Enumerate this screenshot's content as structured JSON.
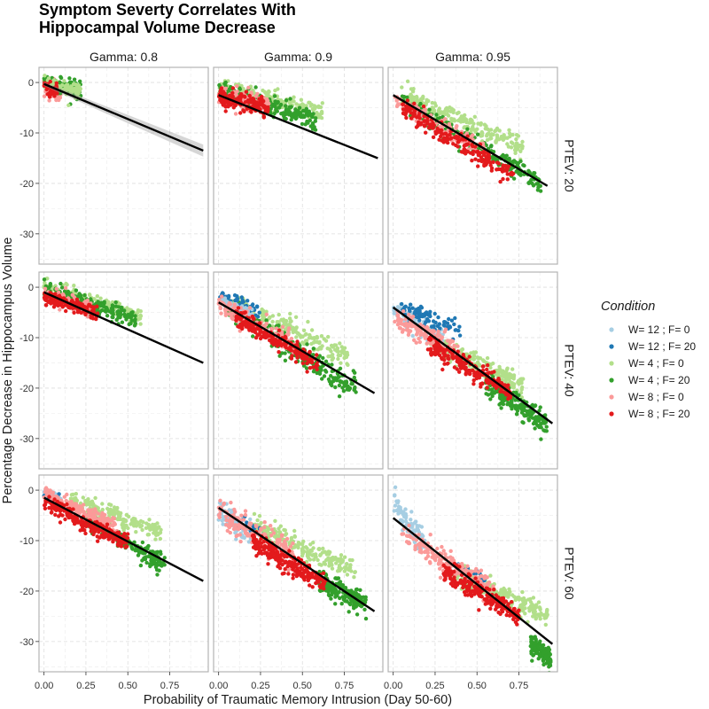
{
  "chart_data": {
    "type": "scatter",
    "title": "Symptom Severty Correlates With\nHippocampal Volume Decrease",
    "xlabel": "Probability of Traumatic Memory Intrusion (Day 50-60)",
    "ylabel": "Percentage Decrease in Hippocampus Volume",
    "xlim": [
      -0.03,
      0.98
    ],
    "ylim": [
      -36,
      3
    ],
    "x_ticks": [
      0,
      0.25,
      0.5,
      0.75
    ],
    "x_tick_labels": [
      "0.00",
      "0.25",
      "0.50",
      "0.75"
    ],
    "y_ticks": [
      0,
      -10,
      -20,
      -30
    ],
    "y_tick_labels": [
      "0",
      "-10",
      "-20",
      "-30"
    ],
    "grid": true,
    "facet_columns": [
      "Gamma: 0.8",
      "Gamma: 0.9",
      "Gamma: 0.95"
    ],
    "facet_rows": [
      "PTEV: 20",
      "PTEV: 40",
      "PTEV: 60"
    ],
    "legend": {
      "title": "Condition",
      "position": "right",
      "entries": [
        {
          "label": "W= 12 ; F= 0",
          "color": "#a6cee3"
        },
        {
          "label": "W= 12 ; F= 20",
          "color": "#1f78b4"
        },
        {
          "label": "W= 4 ; F= 0",
          "color": "#b2df8a"
        },
        {
          "label": "W= 4 ; F= 20",
          "color": "#33a02c"
        },
        {
          "label": "W= 8 ; F= 0",
          "color": "#fb9a99"
        },
        {
          "label": "W= 8 ; F= 20",
          "color": "#e31a1c"
        }
      ]
    },
    "panels": [
      {
        "row": 0,
        "col": 0,
        "fit": {
          "x0": 0.0,
          "y0": -0.3,
          "x1": 0.95,
          "y1": -13.5
        },
        "band": true,
        "clusters": [
          {
            "c": 4,
            "x": [
              0.0,
              0.1
            ],
            "y0": -0.5,
            "slope": -20,
            "sd": 0.8,
            "n": 90
          },
          {
            "c": 3,
            "x": [
              0.0,
              0.22
            ],
            "y0": 0.5,
            "slope": -10,
            "sd": 0.8,
            "n": 90
          },
          {
            "c": 2,
            "x": [
              0.0,
              0.22
            ],
            "y0": 0.3,
            "slope": -10,
            "sd": 0.8,
            "n": 80
          },
          {
            "c": 5,
            "x": [
              0.0,
              0.08
            ],
            "y0": -0.7,
            "slope": -15,
            "sd": 0.7,
            "n": 40
          }
        ]
      },
      {
        "row": 0,
        "col": 1,
        "fit": {
          "x0": 0.0,
          "y0": -2.5,
          "x1": 0.95,
          "y1": -15
        },
        "band": false,
        "clusters": [
          {
            "c": 2,
            "x": [
              0.0,
              0.62
            ],
            "y0": -1.0,
            "slope": -8,
            "sd": 0.9,
            "n": 200
          },
          {
            "c": 3,
            "x": [
              0.0,
              0.58
            ],
            "y0": -1.5,
            "slope": -10,
            "sd": 1.0,
            "n": 200
          },
          {
            "c": 4,
            "x": [
              0.0,
              0.3
            ],
            "y0": -2.5,
            "slope": -6,
            "sd": 0.8,
            "n": 150
          },
          {
            "c": 5,
            "x": [
              0.0,
              0.3
            ],
            "y0": -3.0,
            "slope": -7,
            "sd": 0.8,
            "n": 150
          }
        ]
      },
      {
        "row": 0,
        "col": 2,
        "fit": {
          "x0": 0.0,
          "y0": -2.5,
          "x1": 0.92,
          "y1": -20.5
        },
        "band": false,
        "clusters": [
          {
            "c": 2,
            "x": [
              0.05,
              0.8
            ],
            "y0": -2.0,
            "slope": -14,
            "sd": 1.0,
            "n": 220
          },
          {
            "c": 3,
            "x": [
              0.05,
              0.88
            ],
            "y0": -3.0,
            "slope": -19,
            "sd": 1.0,
            "n": 220
          },
          {
            "c": 4,
            "x": [
              0.0,
              0.55
            ],
            "y0": -3.5,
            "slope": -18,
            "sd": 0.8,
            "n": 150
          },
          {
            "c": 5,
            "x": [
              0.05,
              0.72
            ],
            "y0": -4.0,
            "slope": -20,
            "sd": 0.9,
            "n": 200
          }
        ]
      },
      {
        "row": 1,
        "col": 0,
        "fit": {
          "x0": 0.0,
          "y0": -1.0,
          "x1": 0.95,
          "y1": -15
        },
        "band": false,
        "clusters": [
          {
            "c": 2,
            "x": [
              0.0,
              0.58
            ],
            "y0": 0.0,
            "slope": -10,
            "sd": 0.8,
            "n": 180
          },
          {
            "c": 3,
            "x": [
              0.0,
              0.55
            ],
            "y0": 0.0,
            "slope": -12,
            "sd": 0.9,
            "n": 180
          },
          {
            "c": 4,
            "x": [
              0.0,
              0.3
            ],
            "y0": -1.5,
            "slope": -10,
            "sd": 0.7,
            "n": 140
          },
          {
            "c": 5,
            "x": [
              0.0,
              0.32
            ],
            "y0": -2.0,
            "slope": -10,
            "sd": 0.7,
            "n": 140
          }
        ]
      },
      {
        "row": 1,
        "col": 1,
        "fit": {
          "x0": 0.0,
          "y0": -3.0,
          "x1": 0.93,
          "y1": -21
        },
        "band": false,
        "clusters": [
          {
            "c": 2,
            "x": [
              0.05,
              0.78
            ],
            "y0": -2.0,
            "slope": -15,
            "sd": 1.1,
            "n": 200
          },
          {
            "c": 3,
            "x": [
              0.05,
              0.82
            ],
            "y0": -3.0,
            "slope": -21,
            "sd": 1.2,
            "n": 230
          },
          {
            "c": 1,
            "x": [
              0.0,
              0.25
            ],
            "y0": -1.5,
            "slope": -13,
            "sd": 0.6,
            "n": 50
          },
          {
            "c": 0,
            "x": [
              0.0,
              0.2
            ],
            "y0": -2.5,
            "slope": -13,
            "sd": 0.6,
            "n": 50
          },
          {
            "c": 4,
            "x": [
              0.0,
              0.45
            ],
            "y0": -3.5,
            "slope": -18,
            "sd": 0.9,
            "n": 180
          },
          {
            "c": 5,
            "x": [
              0.1,
              0.6
            ],
            "y0": -4.0,
            "slope": -19,
            "sd": 0.9,
            "n": 200
          }
        ]
      },
      {
        "row": 1,
        "col": 2,
        "fit": {
          "x0": 0.0,
          "y0": -4.0,
          "x1": 0.95,
          "y1": -27
        },
        "band": false,
        "clusters": [
          {
            "c": 2,
            "x": [
              0.2,
              0.78
            ],
            "y0": -7.0,
            "slope": -16,
            "sd": 1.0,
            "n": 200
          },
          {
            "c": 3,
            "x": [
              0.55,
              0.92
            ],
            "y0": -7.0,
            "slope": -22,
            "sd": 1.2,
            "n": 200
          },
          {
            "c": 0,
            "x": [
              0.0,
              0.3
            ],
            "y0": -5.0,
            "slope": -17,
            "sd": 1.0,
            "n": 80
          },
          {
            "c": 1,
            "x": [
              0.05,
              0.4
            ],
            "y0": -3.5,
            "slope": -13,
            "sd": 0.9,
            "n": 80
          },
          {
            "c": 4,
            "x": [
              0.0,
              0.4
            ],
            "y0": -6.0,
            "slope": -18,
            "sd": 1.1,
            "n": 150
          },
          {
            "c": 5,
            "x": [
              0.2,
              0.7
            ],
            "y0": -7.0,
            "slope": -20,
            "sd": 1.0,
            "n": 220
          }
        ]
      },
      {
        "row": 2,
        "col": 0,
        "fit": {
          "x0": 0.0,
          "y0": -1.5,
          "x1": 0.95,
          "y1": -18
        },
        "band": false,
        "clusters": [
          {
            "c": 2,
            "x": [
              0.15,
              0.7
            ],
            "y0": 0.0,
            "slope": -12,
            "sd": 0.8,
            "n": 180
          },
          {
            "c": 3,
            "x": [
              0.25,
              0.72
            ],
            "y0": -1.0,
            "slope": -19,
            "sd": 0.9,
            "n": 200
          },
          {
            "c": 0,
            "x": [
              0.0,
              0.1
            ],
            "y0": -0.5,
            "slope": -15,
            "sd": 0.6,
            "n": 40
          },
          {
            "c": 1,
            "x": [
              0.0,
              0.1
            ],
            "y0": -1.0,
            "slope": -15,
            "sd": 0.6,
            "n": 30
          },
          {
            "c": 4,
            "x": [
              0.0,
              0.45
            ],
            "y0": -1.0,
            "slope": -15,
            "sd": 0.8,
            "n": 180
          },
          {
            "c": 5,
            "x": [
              0.0,
              0.5
            ],
            "y0": -2.5,
            "slope": -16,
            "sd": 0.8,
            "n": 220
          }
        ]
      },
      {
        "row": 2,
        "col": 1,
        "fit": {
          "x0": 0.0,
          "y0": -3.5,
          "x1": 0.93,
          "y1": -24
        },
        "band": false,
        "clusters": [
          {
            "c": 2,
            "x": [
              0.2,
              0.82
            ],
            "y0": -4.0,
            "slope": -15,
            "sd": 1.0,
            "n": 220
          },
          {
            "c": 3,
            "x": [
              0.6,
              0.88
            ],
            "y0": -7.0,
            "slope": -18,
            "sd": 1.2,
            "n": 180
          },
          {
            "c": 0,
            "x": [
              0.0,
              0.2
            ],
            "y0": -4.0,
            "slope": -25,
            "sd": 1.2,
            "n": 90
          },
          {
            "c": 1,
            "x": [
              0.1,
              0.3
            ],
            "y0": -4.5,
            "slope": -15,
            "sd": 0.6,
            "n": 20
          },
          {
            "c": 4,
            "x": [
              0.0,
              0.45
            ],
            "y0": -4.5,
            "slope": -18,
            "sd": 1.3,
            "n": 180
          },
          {
            "c": 5,
            "x": [
              0.2,
              0.65
            ],
            "y0": -6.0,
            "slope": -20,
            "sd": 1.0,
            "n": 220
          }
        ]
      },
      {
        "row": 2,
        "col": 2,
        "fit": {
          "x0": 0.0,
          "y0": -5.5,
          "x1": 0.95,
          "y1": -30.5
        },
        "band": false,
        "clusters": [
          {
            "c": 2,
            "x": [
              0.35,
              0.92
            ],
            "y0": -11.0,
            "slope": -15,
            "sd": 1.0,
            "n": 220
          },
          {
            "c": 3,
            "x": [
              0.82,
              0.94
            ],
            "y0": -10.0,
            "slope": -25,
            "sd": 1.0,
            "n": 130
          },
          {
            "c": 0,
            "x": [
              0.0,
              0.2
            ],
            "y0": -2.0,
            "slope": -45,
            "sd": 1.3,
            "n": 90
          },
          {
            "c": 1,
            "x": [
              0.35,
              0.55
            ],
            "y0": -8.0,
            "slope": -18,
            "sd": 0.5,
            "n": 20
          },
          {
            "c": 4,
            "x": [
              0.05,
              0.6
            ],
            "y0": -8.0,
            "slope": -20,
            "sd": 1.3,
            "n": 200
          },
          {
            "c": 5,
            "x": [
              0.3,
              0.75
            ],
            "y0": -10.0,
            "slope": -20,
            "sd": 1.0,
            "n": 220
          }
        ]
      }
    ]
  }
}
